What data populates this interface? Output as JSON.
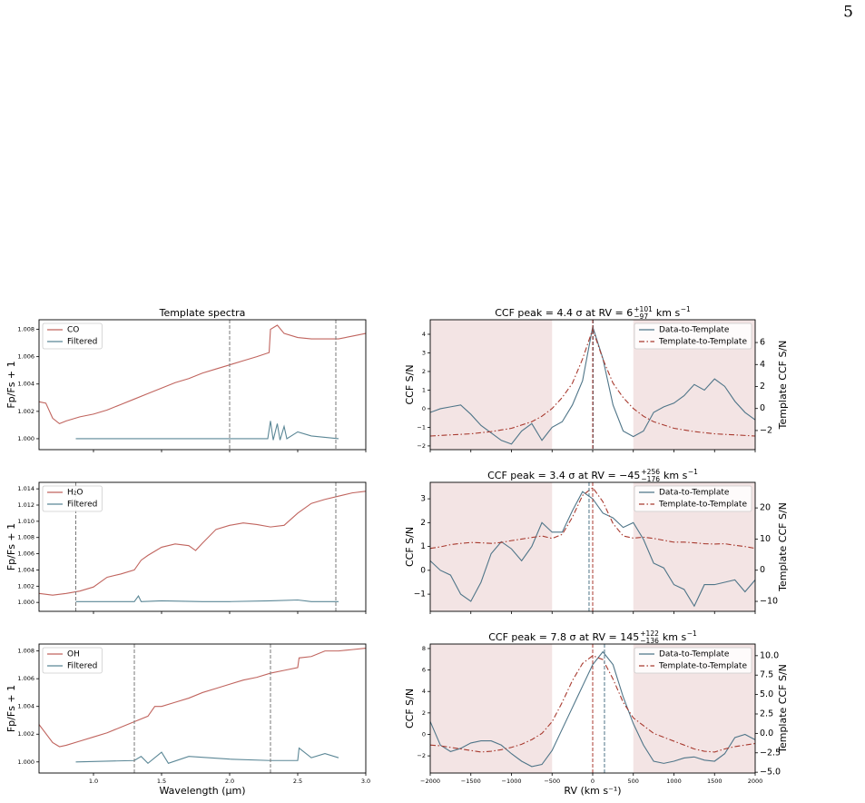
{
  "page_number": "5",
  "chart_data": [
    {
      "type": "line",
      "title": "Template spectra",
      "ylabel": "Fp/Fs + 1",
      "xlim": [
        0.6,
        3.0
      ],
      "ylim": [
        0.9992,
        1.0087
      ],
      "xticks": [
        1,
        1.5,
        2,
        2.5,
        3
      ],
      "show_xtick_labels": false,
      "yticks": [
        {
          "value": 1.0,
          "label": "1.000"
        },
        {
          "value": 1.002,
          "label": "1.002"
        },
        {
          "value": 1.004,
          "label": "1.004"
        },
        {
          "value": 1.006,
          "label": "1.006"
        },
        {
          "value": 1.008,
          "label": "1.008"
        }
      ],
      "vlines": [
        2.0,
        2.78
      ],
      "vline_color": "#7a7a7a",
      "legend": "upper left",
      "series": [
        {
          "name": "CO",
          "color": "#c0645e",
          "x": [
            0.6,
            0.65,
            0.7,
            0.75,
            0.8,
            0.9,
            1.0,
            1.1,
            1.2,
            1.3,
            1.4,
            1.5,
            1.6,
            1.7,
            1.8,
            1.9,
            2.0,
            2.1,
            2.2,
            2.29,
            2.3,
            2.35,
            2.4,
            2.5,
            2.6,
            2.7,
            2.8,
            2.9,
            3.0
          ],
          "values": [
            1.0027,
            1.0026,
            1.0015,
            1.0011,
            1.0013,
            1.0016,
            1.0018,
            1.0021,
            1.0025,
            1.0029,
            1.0033,
            1.0037,
            1.0041,
            1.0044,
            1.0048,
            1.0051,
            1.0054,
            1.0057,
            1.006,
            1.0063,
            1.008,
            1.0083,
            1.0077,
            1.0074,
            1.0073,
            1.0073,
            1.0073,
            1.0075,
            1.0077
          ]
        },
        {
          "name": "Filtered",
          "color": "#5b8796",
          "x": [
            0.87,
            1.5,
            2.28,
            2.3,
            2.32,
            2.35,
            2.37,
            2.4,
            2.42,
            2.5,
            2.6,
            2.8
          ],
          "values": [
            1.0,
            1.0,
            1.0,
            1.0013,
            0.9999,
            1.0011,
            0.9999,
            1.0009,
            1.0,
            1.0005,
            1.0002,
            1.0
          ]
        }
      ]
    },
    {
      "type": "line",
      "ylabel": "Fp/Fs + 1",
      "xlim": [
        0.6,
        3.0
      ],
      "ylim": [
        0.9989,
        1.0148
      ],
      "xticks": [
        1,
        1.5,
        2,
        2.5,
        3
      ],
      "show_xtick_labels": false,
      "yticks": [
        {
          "value": 1.0,
          "label": "1.000"
        },
        {
          "value": 1.002,
          "label": "1.002"
        },
        {
          "value": 1.004,
          "label": "1.004"
        },
        {
          "value": 1.006,
          "label": "1.006"
        },
        {
          "value": 1.008,
          "label": "1.008"
        },
        {
          "value": 1.01,
          "label": "1.010"
        },
        {
          "value": 1.012,
          "label": "1.012"
        },
        {
          "value": 1.014,
          "label": "1.014"
        }
      ],
      "vlines": [
        0.87,
        2.78
      ],
      "vline_color": "#7a7a7a",
      "legend": "upper left",
      "series": [
        {
          "name": "H₂O",
          "color": "#c0645e",
          "x": [
            0.6,
            0.7,
            0.8,
            0.9,
            1.0,
            1.1,
            1.2,
            1.3,
            1.35,
            1.4,
            1.5,
            1.6,
            1.7,
            1.75,
            1.8,
            1.9,
            2.0,
            2.1,
            2.2,
            2.3,
            2.4,
            2.5,
            2.6,
            2.7,
            2.8,
            2.9,
            3.0
          ],
          "values": [
            1.0011,
            1.0009,
            1.0011,
            1.0014,
            1.0019,
            1.0031,
            1.0035,
            1.004,
            1.0052,
            1.0058,
            1.0068,
            1.0072,
            1.007,
            1.0064,
            1.0073,
            1.009,
            1.0095,
            1.0098,
            1.0096,
            1.0093,
            1.0095,
            1.011,
            1.0122,
            1.0127,
            1.0131,
            1.0135,
            1.0137
          ]
        },
        {
          "name": "Filtered",
          "color": "#5b8796",
          "x": [
            0.87,
            1.3,
            1.33,
            1.35,
            1.5,
            1.8,
            2.0,
            2.3,
            2.5,
            2.6,
            2.8
          ],
          "values": [
            1.0001,
            1.0001,
            1.0008,
            1.0001,
            1.0002,
            1.0001,
            1.0001,
            1.0002,
            1.0003,
            1.0001,
            1.0001
          ]
        }
      ]
    },
    {
      "type": "line",
      "ylabel": "Fp/Fs + 1",
      "xlabel": "Wavelength (µm)",
      "xlim": [
        0.6,
        3.0
      ],
      "ylim": [
        0.9992,
        1.0085
      ],
      "xticks": [
        {
          "value": 1,
          "label": "1.0"
        },
        {
          "value": 1.5,
          "label": "1.5"
        },
        {
          "value": 2,
          "label": "2.0"
        },
        {
          "value": 2.5,
          "label": "2.5"
        },
        {
          "value": 3,
          "label": "3.0"
        }
      ],
      "show_xtick_labels": true,
      "yticks": [
        {
          "value": 1.0,
          "label": "1.000"
        },
        {
          "value": 1.002,
          "label": "1.002"
        },
        {
          "value": 1.004,
          "label": "1.004"
        },
        {
          "value": 1.006,
          "label": "1.006"
        },
        {
          "value": 1.008,
          "label": "1.008"
        }
      ],
      "vlines": [
        1.3,
        2.3
      ],
      "vline_color": "#7a7a7a",
      "legend": "upper left",
      "series": [
        {
          "name": "OH",
          "color": "#c0645e",
          "x": [
            0.6,
            0.7,
            0.75,
            0.8,
            0.9,
            1.0,
            1.1,
            1.2,
            1.3,
            1.4,
            1.45,
            1.5,
            1.6,
            1.7,
            1.8,
            1.9,
            2.0,
            2.1,
            2.2,
            2.3,
            2.4,
            2.5,
            2.51,
            2.6,
            2.7,
            2.8,
            2.9,
            3.0
          ],
          "values": [
            1.0027,
            1.0014,
            1.0011,
            1.0012,
            1.0015,
            1.0018,
            1.0021,
            1.0025,
            1.0029,
            1.0033,
            1.004,
            1.004,
            1.0043,
            1.0046,
            1.005,
            1.0053,
            1.0056,
            1.0059,
            1.0061,
            1.0064,
            1.0066,
            1.0068,
            1.0075,
            1.0076,
            1.008,
            1.008,
            1.0081,
            1.0082
          ]
        },
        {
          "name": "Filtered",
          "color": "#5b8796",
          "x": [
            0.87,
            1.3,
            1.35,
            1.4,
            1.5,
            1.55,
            1.7,
            2.0,
            2.3,
            2.5,
            2.51,
            2.6,
            2.7,
            2.8
          ],
          "values": [
            1.0,
            1.0001,
            1.0004,
            0.9999,
            1.0007,
            0.9999,
            1.0004,
            1.0002,
            1.0001,
            1.0001,
            1.001,
            1.0003,
            1.0006,
            1.0003
          ]
        }
      ]
    },
    {
      "type": "line",
      "title": "CCF peak = 4.4 σ at RV = 6",
      "title_sup": "+101",
      "title_sub": "−97",
      "title_unit": "km s",
      "title_unit_sup": "−1",
      "ylabel": "CCF S/N",
      "y2label": "Template CCF S/N",
      "xlim": [
        -2000,
        2000
      ],
      "ylim": [
        -2.2,
        4.78
      ],
      "y2lim": [
        -3.74,
        8.07
      ],
      "xticks": [
        -2000,
        -1500,
        -1000,
        -500,
        0,
        500,
        1000,
        1500,
        2000
      ],
      "show_xtick_labels": false,
      "yticks": [
        {
          "value": -2,
          "label": "−2"
        },
        {
          "value": -1,
          "label": "−1"
        },
        0,
        1,
        2,
        3,
        4
      ],
      "y2ticks": [
        {
          "value": -2,
          "label": "−2"
        },
        0,
        2,
        4,
        6
      ],
      "shaded_regions": [
        [
          -2000,
          -500
        ],
        [
          500,
          2000
        ]
      ],
      "shade_color": "#f3e4e4",
      "legend": "upper right",
      "vlines": [
        {
          "x": 6,
          "color": "#4f7588"
        },
        {
          "x": 0,
          "color": "#a83a2f"
        }
      ],
      "x": [
        -2000,
        -1875,
        -1750,
        -1625,
        -1500,
        -1375,
        -1250,
        -1125,
        -1000,
        -875,
        -750,
        -625,
        -500,
        -375,
        -250,
        -125,
        0,
        125,
        250,
        375,
        500,
        625,
        750,
        875,
        1000,
        1125,
        1250,
        1375,
        1500,
        1625,
        1750,
        1875,
        2000
      ],
      "series": [
        {
          "name": "Data-to-Template",
          "color": "#4f7588",
          "values": [
            -0.2,
            0.0,
            0.1,
            0.2,
            -0.3,
            -0.9,
            -1.3,
            -1.7,
            -1.9,
            -1.2,
            -0.8,
            -1.7,
            -1.0,
            -0.7,
            0.2,
            1.5,
            4.4,
            2.7,
            0.2,
            -1.2,
            -1.5,
            -1.2,
            -0.2,
            0.1,
            0.3,
            0.7,
            1.3,
            1.0,
            1.6,
            1.2,
            0.4,
            -0.2,
            -0.6
          ]
        },
        {
          "name": "Template-to-Template",
          "color": "#a83a2f",
          "axis": "y2",
          "linestyle": "dashdot",
          "values": [
            -2.5,
            -2.45,
            -2.4,
            -2.35,
            -2.3,
            -2.2,
            -2.1,
            -1.95,
            -1.8,
            -1.5,
            -1.2,
            -0.7,
            0.0,
            1.0,
            2.3,
            4.5,
            7.2,
            4.5,
            2.3,
            1.0,
            0.0,
            -0.7,
            -1.2,
            -1.5,
            -1.8,
            -1.95,
            -2.1,
            -2.2,
            -2.3,
            -2.35,
            -2.4,
            -2.45,
            -2.5
          ]
        }
      ]
    },
    {
      "type": "line",
      "title": "CCF peak = 3.4 σ at RV = −45",
      "title_sup": "+256",
      "title_sub": "−176",
      "title_unit": "km s",
      "title_unit_sup": "−1",
      "ylabel": "CCF S/N",
      "y2label": "Template CCF S/N",
      "xlim": [
        -2000,
        2000
      ],
      "ylim": [
        -1.72,
        3.69
      ],
      "y2lim": [
        -13.2,
        28.2
      ],
      "xticks": [
        -2000,
        -1500,
        -1000,
        -500,
        0,
        500,
        1000,
        1500,
        2000
      ],
      "show_xtick_labels": false,
      "yticks": [
        {
          "value": -1,
          "label": "−1"
        },
        0,
        1,
        2,
        3
      ],
      "y2ticks": [
        {
          "value": -10,
          "label": "−10"
        },
        0,
        10,
        20
      ],
      "shaded_regions": [
        [
          -2000,
          -500
        ],
        [
          500,
          2000
        ]
      ],
      "shade_color": "#f3e4e4",
      "legend": "upper right",
      "vlines": [
        {
          "x": -45,
          "color": "#4f7588"
        },
        {
          "x": 0,
          "color": "#a83a2f"
        }
      ],
      "x": [
        -2000,
        -1875,
        -1750,
        -1625,
        -1500,
        -1375,
        -1250,
        -1125,
        -1000,
        -875,
        -750,
        -625,
        -500,
        -375,
        -250,
        -125,
        0,
        125,
        250,
        375,
        500,
        625,
        750,
        875,
        1000,
        1125,
        1250,
        1375,
        1500,
        1625,
        1750,
        1875,
        2000
      ],
      "series": [
        {
          "name": "Data-to-Template",
          "color": "#4f7588",
          "values": [
            0.4,
            0.0,
            -0.2,
            -1.0,
            -1.3,
            -0.5,
            0.7,
            1.2,
            0.9,
            0.4,
            1.0,
            2.0,
            1.6,
            1.6,
            2.5,
            3.3,
            3.0,
            2.4,
            2.2,
            1.8,
            2.0,
            1.3,
            0.3,
            0.1,
            -0.6,
            -0.8,
            -1.5,
            -0.6,
            -0.6,
            -0.5,
            -0.4,
            -0.9,
            -0.4
          ]
        },
        {
          "name": "Template-to-Template",
          "color": "#a83a2f",
          "axis": "y2",
          "linestyle": "dashdot",
          "values": [
            7.0,
            7.5,
            8.2,
            8.6,
            8.9,
            8.8,
            8.6,
            8.9,
            9.5,
            10,
            10.5,
            11,
            10.2,
            11.5,
            17,
            24,
            26.5,
            22,
            15,
            11,
            10.3,
            10.6,
            10.2,
            9.6,
            9.0,
            9.0,
            8.8,
            8.5,
            8.4,
            8.5,
            8.0,
            7.6,
            7.0
          ]
        }
      ]
    },
    {
      "type": "line",
      "title": "CCF peak = 7.8 σ at RV = 145",
      "title_sup": "+122",
      "title_sub": "−136",
      "title_unit": "km s",
      "title_unit_sup": "−1",
      "ylabel": "CCF S/N",
      "y2label": "Template CCF S/N",
      "xlabel": "RV (km s⁻¹)",
      "xlim": [
        -2000,
        2000
      ],
      "ylim": [
        -3.6,
        8.42
      ],
      "y2lim": [
        -5.1,
        11.5
      ],
      "xticks": [
        {
          "value": -2000,
          "label": "−2000"
        },
        {
          "value": -1500,
          "label": "−1500"
        },
        {
          "value": -1000,
          "label": "−1000"
        },
        {
          "value": -500,
          "label": "−500"
        },
        0,
        500,
        1000,
        1500,
        2000
      ],
      "show_xtick_labels": true,
      "yticks": [
        {
          "value": -2,
          "label": "−2"
        },
        0,
        2,
        4,
        6,
        8
      ],
      "y2ticks": [
        {
          "value": -5,
          "label": "−5.0"
        },
        {
          "value": -2.5,
          "label": "−2.5"
        },
        {
          "value": 0,
          "label": "0.0"
        },
        {
          "value": 2.5,
          "label": "2.5"
        },
        {
          "value": 5,
          "label": "5.0"
        },
        {
          "value": 7.5,
          "label": "7.5"
        },
        {
          "value": 10,
          "label": "10.0"
        }
      ],
      "shaded_regions": [
        [
          -2000,
          -500
        ],
        [
          500,
          2000
        ]
      ],
      "shade_color": "#f3e4e4",
      "legend": "upper right",
      "vlines": [
        {
          "x": 145,
          "color": "#4f7588"
        },
        {
          "x": 0,
          "color": "#a83a2f"
        }
      ],
      "x": [
        -2000,
        -1875,
        -1750,
        -1625,
        -1500,
        -1375,
        -1250,
        -1125,
        -1000,
        -875,
        -750,
        -625,
        -500,
        -375,
        -250,
        -125,
        0,
        125,
        250,
        375,
        500,
        625,
        750,
        875,
        1000,
        1125,
        1250,
        1375,
        1500,
        1625,
        1750,
        1875,
        2000
      ],
      "series": [
        {
          "name": "Data-to-Template",
          "color": "#4f7588",
          "values": [
            1.2,
            -1.0,
            -1.6,
            -1.3,
            -0.8,
            -0.6,
            -0.6,
            -1.0,
            -1.8,
            -2.5,
            -3.0,
            -2.8,
            -1.5,
            0.5,
            2.5,
            4.5,
            6.5,
            7.7,
            6.5,
            3.5,
            1.0,
            -1.0,
            -2.5,
            -2.7,
            -2.5,
            -2.2,
            -2.1,
            -2.4,
            -2.5,
            -1.8,
            -0.3,
            0.0,
            -0.5
          ]
        },
        {
          "name": "Template-to-Template",
          "color": "#a83a2f",
          "axis": "y2",
          "linestyle": "dashdot",
          "values": [
            -1.5,
            -1.6,
            -1.8,
            -2.0,
            -2.2,
            -2.4,
            -2.3,
            -2.1,
            -1.8,
            -1.4,
            -0.8,
            0,
            1.5,
            4,
            6.8,
            9,
            10.0,
            9.5,
            7,
            4,
            2,
            1,
            0,
            -0.5,
            -1.0,
            -1.5,
            -2.0,
            -2.3,
            -2.4,
            -2.0,
            -1.7,
            -1.5,
            -1.3
          ]
        }
      ]
    }
  ]
}
